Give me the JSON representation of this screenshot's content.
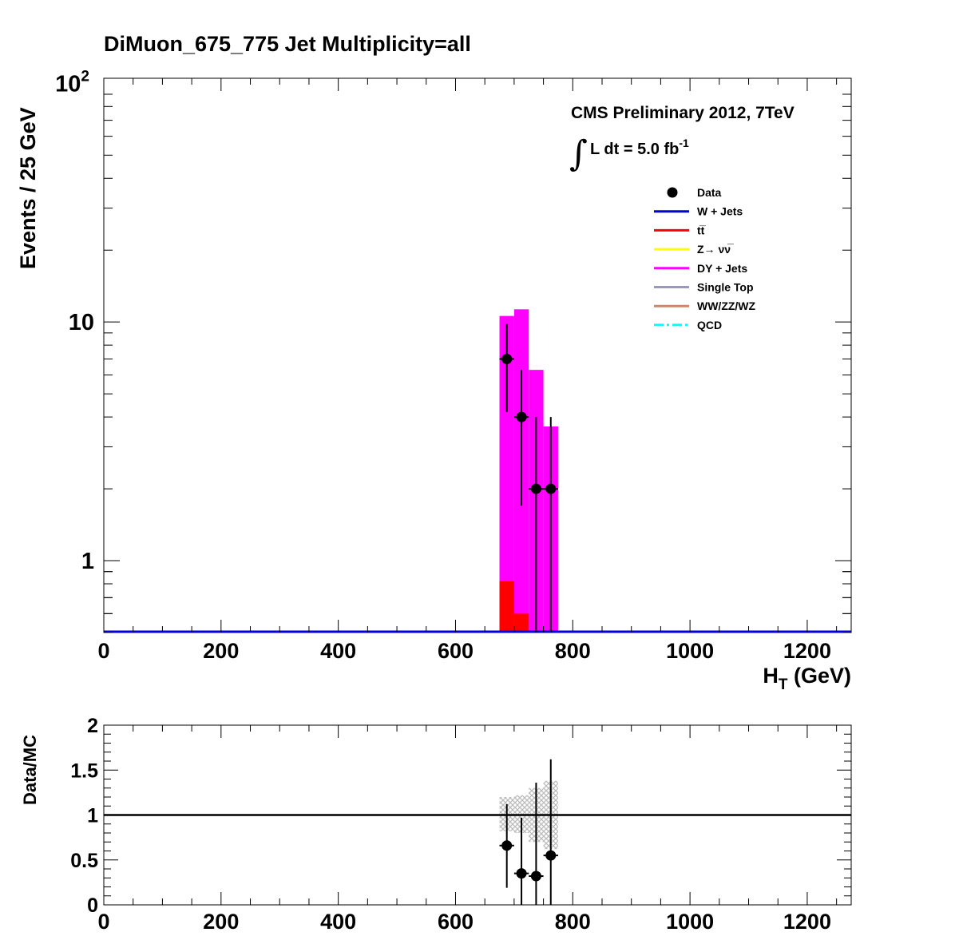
{
  "title": "DiMuon_675_775    Jet Multiplicity=all",
  "cms_label": "CMS Preliminary 2012, 7TeV",
  "lumi_label": "L dt = 5.0 fb",
  "lumi_exponent": "-1",
  "colors": {
    "w_jets": "#0000dd",
    "ttbar": "#ff0000",
    "znunu": "#ffff00",
    "dy_jets": "#ff00ff",
    "single_top": "#9999bb",
    "diboson": "#cc8866",
    "qcd": "#00ffff",
    "data": "#000000",
    "band": "#bbbbbb"
  },
  "chart_data": [
    {
      "type": "bar",
      "subtype": "stacked-histogram-with-data-points",
      "title": "DiMuon_675_775    Jet Multiplicity=all",
      "xlabel": "H",
      "xlabel_sub": "T",
      "xlabel_unit": " (GeV)",
      "ylabel": "Events / 25 GeV",
      "xlim": [
        0,
        1275
      ],
      "ylim": [
        0.5,
        105
      ],
      "yscale": "log",
      "bin_width": 25,
      "x_ticks": [
        "0",
        "200",
        "400",
        "600",
        "800",
        "1000",
        "1200"
      ],
      "y_ticks": [
        {
          "value": 1,
          "base": "1",
          "exp": ""
        },
        {
          "value": 10,
          "base": "10",
          "exp": ""
        },
        {
          "value": 100,
          "base": "10",
          "exp": "2"
        }
      ],
      "legend": {
        "placement": "top-right",
        "entries": [
          {
            "label": "Data",
            "kind": "marker",
            "color": "#000000"
          },
          {
            "label": "W + Jets",
            "kind": "line",
            "color": "#0000dd"
          },
          {
            "label": "tt̅",
            "kind": "line",
            "color": "#ff0000"
          },
          {
            "label": "Z→ νν̅",
            "kind": "line",
            "color": "#ffff00"
          },
          {
            "label": "DY + Jets",
            "kind": "line",
            "color": "#ff00ff"
          },
          {
            "label": "Single Top",
            "kind": "line",
            "color": "#9999bb"
          },
          {
            "label": "WW/ZZ/WZ",
            "kind": "line",
            "color": "#cc8866"
          },
          {
            "label": "QCD",
            "kind": "dashdot",
            "color": "#00ffff"
          }
        ]
      },
      "series": [
        {
          "name": "DY + Jets",
          "bins": [
            {
              "x0": 675,
              "x1": 700,
              "total": 10.6
            },
            {
              "x0": 700,
              "x1": 725,
              "total": 11.3
            },
            {
              "x0": 725,
              "x1": 750,
              "total": 6.3
            },
            {
              "x0": 750,
              "x1": 775,
              "total": 3.65
            }
          ]
        },
        {
          "name": "tt̅",
          "bins": [
            {
              "x0": 675,
              "x1": 700,
              "total": 0.82
            },
            {
              "x0": 700,
              "x1": 725,
              "total": 0.6
            }
          ]
        },
        {
          "name": "W + Jets",
          "bins": []
        },
        {
          "name": "Data",
          "points": [
            {
              "x": 687.5,
              "y": 7,
              "ylo": 4.2,
              "yhi": 9.8
            },
            {
              "x": 712.5,
              "y": 4,
              "ylo": 1.7,
              "yhi": 6.3
            },
            {
              "x": 737.5,
              "y": 2,
              "ylo": 0.5,
              "yhi": 4.0
            },
            {
              "x": 762.5,
              "y": 2,
              "ylo": 0.5,
              "yhi": 4.0
            }
          ]
        }
      ]
    },
    {
      "type": "scatter",
      "title": "",
      "xlabel": "",
      "ylabel": "Data/MC",
      "xlim": [
        0,
        1275
      ],
      "ylim": [
        0,
        2
      ],
      "x_ticks": [
        "0",
        "200",
        "400",
        "600",
        "800",
        "1000",
        "1200"
      ],
      "y_ticks": [
        "0",
        "0.5",
        "1",
        "1.5",
        "2"
      ],
      "reference_line": 1,
      "uncertainty_band": [
        {
          "x0": 675,
          "x1": 700,
          "lo": 0.82,
          "hi": 1.2
        },
        {
          "x0": 700,
          "x1": 725,
          "lo": 0.8,
          "hi": 1.22
        },
        {
          "x0": 725,
          "x1": 750,
          "lo": 0.7,
          "hi": 1.3
        },
        {
          "x0": 750,
          "x1": 775,
          "lo": 0.62,
          "hi": 1.38
        }
      ],
      "points": [
        {
          "x": 687.5,
          "y": 0.66,
          "ylo": 0.19,
          "yhi": 1.12
        },
        {
          "x": 712.5,
          "y": 0.35,
          "ylo": 0.0,
          "yhi": 0.97
        },
        {
          "x": 737.5,
          "y": 0.32,
          "ylo": 0.0,
          "yhi": 1.36
        },
        {
          "x": 762.5,
          "y": 0.55,
          "ylo": 0.0,
          "yhi": 1.62
        }
      ]
    }
  ]
}
